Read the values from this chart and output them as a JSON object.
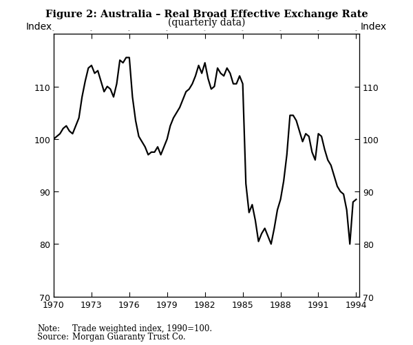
{
  "title_line1": "Figure 2: Australia – Real Broad Effective Exchange Rate",
  "title_line2": "(quarterly data)",
  "ylabel_left": "Index",
  "ylabel_right": "Index",
  "note_label": "Note:",
  "note_text": "Trade weighted index, 1990=100.",
  "source_label": "Source:",
  "source_text": "Morgan Guaranty Trust Co.",
  "xlim": [
    1970.0,
    1994.25
  ],
  "ylim": [
    70,
    120
  ],
  "yticks": [
    70,
    80,
    90,
    100,
    110
  ],
  "xticks": [
    1970,
    1973,
    1976,
    1979,
    1982,
    1985,
    1988,
    1991,
    1994
  ],
  "line_color": "#000000",
  "line_width": 1.6,
  "background_color": "#ffffff",
  "data": {
    "x": [
      1970.0,
      1970.25,
      1970.5,
      1970.75,
      1971.0,
      1971.25,
      1971.5,
      1971.75,
      1972.0,
      1972.25,
      1972.5,
      1972.75,
      1973.0,
      1973.25,
      1973.5,
      1973.75,
      1974.0,
      1974.25,
      1974.5,
      1974.75,
      1975.0,
      1975.25,
      1975.5,
      1975.75,
      1976.0,
      1976.25,
      1976.5,
      1976.75,
      1977.0,
      1977.25,
      1977.5,
      1977.75,
      1978.0,
      1978.25,
      1978.5,
      1978.75,
      1979.0,
      1979.25,
      1979.5,
      1979.75,
      1980.0,
      1980.25,
      1980.5,
      1980.75,
      1981.0,
      1981.25,
      1981.5,
      1981.75,
      1982.0,
      1982.25,
      1982.5,
      1982.75,
      1983.0,
      1983.25,
      1983.5,
      1983.75,
      1984.0,
      1984.25,
      1984.5,
      1984.75,
      1985.0,
      1985.25,
      1985.5,
      1985.75,
      1986.0,
      1986.25,
      1986.5,
      1986.75,
      1987.0,
      1987.25,
      1987.5,
      1987.75,
      1988.0,
      1988.25,
      1988.5,
      1988.75,
      1989.0,
      1989.25,
      1989.5,
      1989.75,
      1990.0,
      1990.25,
      1990.5,
      1990.75,
      1991.0,
      1991.25,
      1991.5,
      1991.75,
      1992.0,
      1992.25,
      1992.5,
      1992.75,
      1993.0,
      1993.25,
      1993.5,
      1993.75,
      1994.0
    ],
    "y": [
      100.0,
      100.5,
      101.0,
      102.0,
      102.5,
      101.5,
      101.0,
      102.5,
      104.0,
      108.0,
      111.0,
      113.5,
      114.0,
      112.5,
      113.0,
      111.0,
      109.0,
      110.0,
      109.5,
      108.0,
      110.5,
      115.0,
      114.5,
      115.5,
      115.5,
      108.0,
      103.5,
      100.5,
      99.5,
      98.5,
      97.0,
      97.5,
      97.5,
      98.5,
      97.0,
      98.5,
      100.0,
      102.5,
      104.0,
      105.0,
      106.0,
      107.5,
      109.0,
      109.5,
      110.5,
      112.0,
      114.0,
      112.5,
      114.5,
      111.5,
      109.5,
      110.0,
      113.5,
      112.5,
      112.0,
      113.5,
      112.5,
      110.5,
      110.5,
      112.0,
      110.5,
      91.5,
      86.0,
      87.5,
      84.5,
      80.5,
      82.0,
      83.0,
      81.5,
      80.0,
      83.0,
      86.5,
      88.5,
      92.0,
      97.0,
      104.5,
      104.5,
      103.5,
      101.5,
      99.5,
      101.0,
      100.5,
      97.5,
      96.0,
      101.0,
      100.5,
      98.0,
      96.0,
      95.0,
      93.0,
      91.0,
      90.0,
      89.5,
      86.5,
      80.0,
      88.0,
      88.5
    ]
  }
}
